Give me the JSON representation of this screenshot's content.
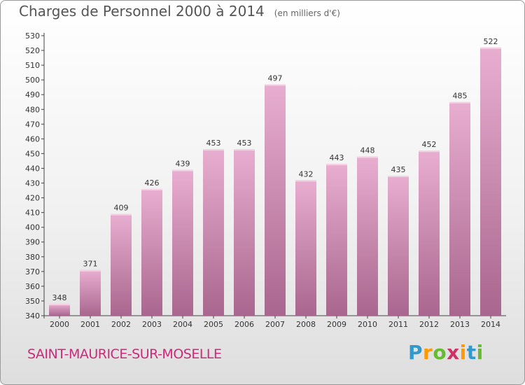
{
  "title": "Charges de Personnel 2000 à 2014",
  "subtitle": "(en milliers d'€)",
  "commune": "SAINT-MAURICE-SUR-MOSELLE",
  "logo": {
    "letters": [
      "P",
      "r",
      "o",
      "x",
      "i",
      "t",
      "i"
    ],
    "colors": [
      "#3399cc",
      "#ff9900",
      "#66bb33",
      "#cc3366",
      "#ff9900",
      "#3399cc",
      "#66bb33"
    ]
  },
  "colors": {
    "bar_light": "#e8aed0",
    "bar_dark": "#a9668e",
    "label": "#333333"
  },
  "chart_data": {
    "type": "bar",
    "categories": [
      "2000",
      "2001",
      "2002",
      "2003",
      "2004",
      "2005",
      "2006",
      "2007",
      "2008",
      "2009",
      "2010",
      "2011",
      "2012",
      "2013",
      "2014"
    ],
    "values": [
      348,
      371,
      409,
      426,
      439,
      453,
      453,
      497,
      432,
      443,
      448,
      435,
      452,
      485,
      522
    ],
    "ylim": [
      340,
      530
    ],
    "yticks": [
      340,
      350,
      360,
      370,
      380,
      390,
      400,
      410,
      420,
      430,
      440,
      450,
      460,
      470,
      480,
      490,
      500,
      510,
      520,
      530
    ],
    "grid": false
  }
}
